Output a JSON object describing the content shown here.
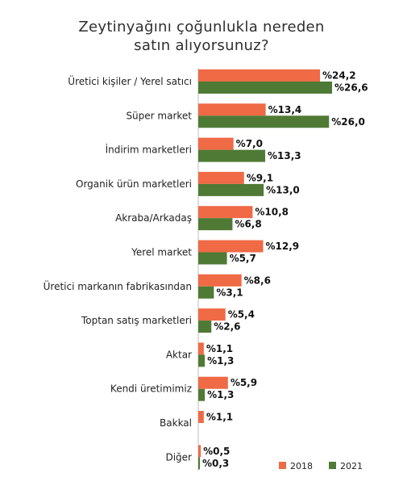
{
  "chart_data": {
    "type": "bar",
    "orientation": "horizontal",
    "title_lines": [
      "Zeytinyağını çoğunlukla nereden",
      "satın alıyorsunuz?"
    ],
    "categories": [
      "Üretici kişiler / Yerel satıcı",
      "Süper market",
      "İndirim marketleri",
      "Organik ürün marketleri",
      "Akraba/Arkadaş",
      "Yerel market",
      "Üretici markanın fabrikasından",
      "Toptan satış marketleri",
      "Aktar",
      "Kendi üretimimiz",
      "Bakkal",
      "Diğer"
    ],
    "series": [
      {
        "name": "2018",
        "color": "#ef6a45",
        "values": [
          24.2,
          13.4,
          7.0,
          9.1,
          10.8,
          12.9,
          8.6,
          5.4,
          1.1,
          5.9,
          1.1,
          0.5
        ],
        "labels": [
          "%24,2",
          "%13,4",
          "%7,0",
          "%9,1",
          "%10,8",
          "%12,9",
          "%8,6",
          "%5,4",
          "%1,1",
          "%5,9",
          "%1,1",
          "%0,5"
        ]
      },
      {
        "name": "2021",
        "color": "#4f7a35",
        "values": [
          26.6,
          26.0,
          13.3,
          13.0,
          6.8,
          5.7,
          3.1,
          2.6,
          1.3,
          1.3,
          null,
          0.3
        ],
        "labels": [
          "%26,6",
          "%26,0",
          "%13,3",
          "%13,0",
          "%6,8",
          "%5,7",
          "%3,1",
          "%2,6",
          "%1,3",
          "%1,3",
          "",
          "%0,3"
        ]
      }
    ],
    "xlim": [
      0,
      30
    ],
    "grid": false,
    "legend_position": "bottom-right"
  }
}
